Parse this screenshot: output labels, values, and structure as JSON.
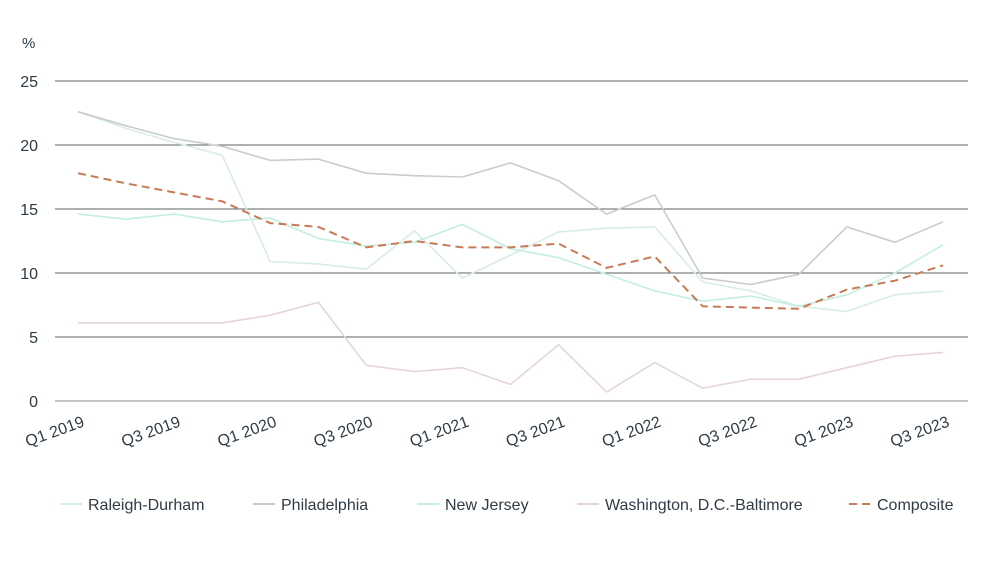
{
  "chart_data": {
    "type": "line",
    "unit_label": "%",
    "x": [
      "Q1 2019",
      "Q2 2019",
      "Q3 2019",
      "Q4 2019",
      "Q1 2020",
      "Q2 2020",
      "Q3 2020",
      "Q4 2020",
      "Q1 2021",
      "Q2 2021",
      "Q3 2021",
      "Q4 2021",
      "Q1 2022",
      "Q2 2022",
      "Q3 2022",
      "Q4 2022",
      "Q1 2023",
      "Q2 2023",
      "Q3 2023"
    ],
    "x_tick_labels": [
      "Q1 2019",
      "Q3 2019",
      "Q1 2020",
      "Q3 2020",
      "Q1 2021",
      "Q3 2021",
      "Q1 2022",
      "Q3 2022",
      "Q1 2023",
      "Q3 2023"
    ],
    "y_ticks": [
      0,
      5,
      10,
      15,
      20,
      25
    ],
    "ylim": [
      0,
      25
    ],
    "grid": true,
    "legend_position": "bottom",
    "series": [
      {
        "name": "Raleigh-Durham",
        "color": "#d8ece6",
        "dashed": false,
        "values": [
          22.6,
          21.3,
          20.2,
          19.2,
          10.9,
          10.7,
          10.3,
          13.3,
          9.6,
          11.4,
          13.2,
          13.5,
          13.6,
          9.3,
          8.6,
          7.4,
          7.0,
          8.3,
          8.6
        ]
      },
      {
        "name": "Philadelphia",
        "color": "#c9cccf",
        "dashed": false,
        "values": [
          22.6,
          21.5,
          20.5,
          19.9,
          18.8,
          18.9,
          17.8,
          17.6,
          17.5,
          18.6,
          17.2,
          14.6,
          16.1,
          9.6,
          9.1,
          9.9,
          13.6,
          12.4,
          14.0
        ]
      },
      {
        "name": "New Jersey",
        "color": "#c3eee0",
        "dashed": false,
        "values": [
          14.6,
          14.2,
          14.6,
          14.0,
          14.3,
          12.7,
          12.1,
          12.4,
          13.8,
          11.9,
          11.2,
          9.9,
          8.6,
          7.8,
          8.2,
          7.4,
          8.3,
          10.0,
          12.2
        ]
      },
      {
        "name": "Washington, D.C.-Baltimore",
        "color": "#e6d5d6",
        "dashed": false,
        "values": [
          6.1,
          6.1,
          6.1,
          6.1,
          6.7,
          7.7,
          2.8,
          2.3,
          2.6,
          1.3,
          4.4,
          0.7,
          3.0,
          1.0,
          1.7,
          1.7,
          2.6,
          3.5,
          3.8
        ]
      },
      {
        "name": "Composite",
        "color": "#c87a56",
        "dashed": true,
        "values": [
          17.8,
          17.0,
          16.3,
          15.6,
          13.9,
          13.6,
          12.0,
          12.5,
          12.0,
          12.0,
          12.3,
          10.4,
          11.3,
          7.4,
          7.3,
          7.2,
          8.7,
          9.4,
          10.6
        ]
      }
    ]
  }
}
